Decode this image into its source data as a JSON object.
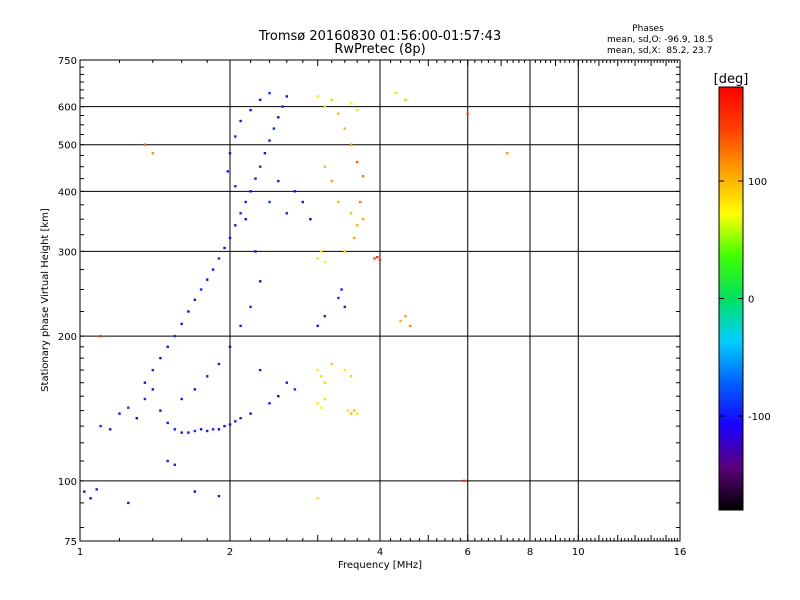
{
  "chart_data": {
    "type": "scatter",
    "title": "Tromsø 20160830 01:56:00-01:57:43",
    "subtitle": "RwPretec (8p)",
    "xlabel": "Frequency [MHz]",
    "ylabel": "Stationary phase Virtual Height [km]",
    "x_scale": "log",
    "y_scale": "log",
    "xlim": [
      1,
      16
    ],
    "ylim": [
      75,
      750
    ],
    "x_ticks": [
      1,
      2,
      4,
      6,
      8,
      10,
      16
    ],
    "x_tick_labels": [
      "1",
      "2",
      "4",
      "6",
      "8",
      "10",
      "16"
    ],
    "y_ticks": [
      75,
      100,
      200,
      300,
      400,
      500,
      600,
      750
    ],
    "y_tick_labels": [
      "75",
      "100",
      "200",
      "300",
      "400",
      "500",
      "600",
      "750"
    ],
    "grid": true,
    "legend_title": "Phases",
    "legend_lines": [
      "mean, sd,O: -96.9, 18.5",
      "mean, sd,X:  85.2, 23.7"
    ],
    "colorbar": {
      "label": "[deg]",
      "range": [
        -180,
        180
      ],
      "ticks": [
        -100,
        0,
        100
      ],
      "tick_labels": [
        "-100",
        "0",
        "100"
      ],
      "colormap": "rainbow",
      "stops": [
        "#000000",
        "#5a007a",
        "#1a00ff",
        "#0060ff",
        "#00d0ff",
        "#00e060",
        "#40ff00",
        "#ffff00",
        "#ffa000",
        "#ff4000",
        "#ff0000"
      ]
    },
    "series": [
      {
        "name": "O",
        "phase_mean": -96.9,
        "phase_sd": 18.5,
        "points": [
          [
            1.02,
            95,
            -120
          ],
          [
            1.05,
            92,
            -110
          ],
          [
            1.08,
            96,
            -100
          ],
          [
            1.1,
            130,
            -95
          ],
          [
            1.15,
            128,
            -105
          ],
          [
            1.2,
            138,
            -100
          ],
          [
            1.25,
            142,
            -90
          ],
          [
            1.3,
            135,
            -110
          ],
          [
            1.35,
            148,
            -95
          ],
          [
            1.4,
            155,
            -100
          ],
          [
            1.45,
            140,
            -105
          ],
          [
            1.5,
            132,
            -100
          ],
          [
            1.55,
            128,
            -95
          ],
          [
            1.6,
            126,
            -110
          ],
          [
            1.65,
            126,
            -100
          ],
          [
            1.7,
            127,
            -90
          ],
          [
            1.75,
            128,
            -105
          ],
          [
            1.8,
            127,
            -100
          ],
          [
            1.85,
            128,
            -95
          ],
          [
            1.9,
            128,
            -110
          ],
          [
            1.95,
            130,
            -100
          ],
          [
            2.0,
            131,
            -105
          ],
          [
            2.05,
            133,
            -95
          ],
          [
            2.1,
            135,
            -100
          ],
          [
            2.2,
            138,
            -110
          ],
          [
            1.35,
            160,
            -100
          ],
          [
            1.4,
            170,
            -95
          ],
          [
            1.45,
            180,
            -105
          ],
          [
            1.5,
            190,
            -100
          ],
          [
            1.55,
            200,
            -90
          ],
          [
            1.6,
            212,
            -100
          ],
          [
            1.65,
            225,
            -110
          ],
          [
            1.7,
            238,
            -100
          ],
          [
            1.75,
            250,
            -95
          ],
          [
            1.8,
            262,
            -105
          ],
          [
            1.85,
            275,
            -100
          ],
          [
            1.9,
            290,
            -95
          ],
          [
            1.95,
            305,
            -110
          ],
          [
            2.0,
            320,
            -100
          ],
          [
            2.05,
            340,
            -105
          ],
          [
            2.1,
            360,
            -95
          ],
          [
            2.15,
            380,
            -100
          ],
          [
            2.2,
            400,
            -110
          ],
          [
            2.25,
            425,
            -100
          ],
          [
            2.3,
            450,
            -95
          ],
          [
            2.35,
            480,
            -105
          ],
          [
            2.4,
            510,
            -100
          ],
          [
            2.45,
            540,
            -95
          ],
          [
            2.5,
            570,
            -110
          ],
          [
            2.55,
            600,
            -100
          ],
          [
            2.6,
            630,
            -105
          ],
          [
            2.4,
            640,
            -95
          ],
          [
            2.3,
            620,
            -100
          ],
          [
            2.2,
            590,
            -110
          ],
          [
            2.1,
            560,
            -100
          ],
          [
            2.05,
            520,
            -95
          ],
          [
            2.0,
            480,
            -105
          ],
          [
            1.98,
            440,
            -100
          ],
          [
            2.05,
            410,
            -95
          ],
          [
            2.15,
            350,
            -110
          ],
          [
            2.25,
            300,
            -100
          ],
          [
            2.3,
            260,
            -105
          ],
          [
            2.2,
            230,
            -95
          ],
          [
            2.1,
            210,
            -100
          ],
          [
            2.0,
            190,
            -110
          ],
          [
            1.9,
            175,
            -100
          ],
          [
            1.8,
            165,
            -95
          ],
          [
            1.7,
            155,
            -105
          ],
          [
            1.6,
            148,
            -100
          ],
          [
            2.4,
            380,
            -90
          ],
          [
            2.5,
            420,
            -100
          ],
          [
            2.6,
            360,
            -95
          ],
          [
            2.7,
            400,
            -105
          ],
          [
            2.8,
            380,
            -100
          ],
          [
            2.9,
            350,
            -110
          ],
          [
            2.6,
            160,
            -100
          ],
          [
            2.7,
            155,
            -95
          ],
          [
            2.5,
            150,
            -105
          ],
          [
            2.4,
            145,
            -100
          ],
          [
            2.3,
            170,
            -95
          ],
          [
            3.3,
            240,
            -90
          ],
          [
            3.4,
            230,
            -100
          ],
          [
            3.35,
            250,
            -95
          ],
          [
            1.5,
            110,
            -100
          ],
          [
            1.55,
            108,
            -95
          ],
          [
            1.7,
            95,
            -110
          ],
          [
            1.9,
            93,
            -100
          ],
          [
            1.25,
            90,
            -105
          ],
          [
            3.0,
            210,
            -100
          ],
          [
            3.1,
            220,
            -95
          ]
        ]
      },
      {
        "name": "X",
        "phase_mean": 85.2,
        "phase_sd": 23.7,
        "points": [
          [
            3.0,
            290,
            60
          ],
          [
            3.05,
            300,
            80
          ],
          [
            3.1,
            285,
            70
          ],
          [
            3.0,
            170,
            75
          ],
          [
            3.05,
            165,
            85
          ],
          [
            3.1,
            160,
            90
          ],
          [
            3.0,
            145,
            80
          ],
          [
            3.05,
            142,
            70
          ],
          [
            3.1,
            148,
            85
          ],
          [
            3.2,
            175,
            95
          ],
          [
            3.4,
            170,
            80
          ],
          [
            3.5,
            165,
            90
          ],
          [
            3.45,
            140,
            85
          ],
          [
            3.5,
            138,
            100
          ],
          [
            3.55,
            140,
            95
          ],
          [
            3.6,
            138,
            80
          ],
          [
            3.7,
            350,
            110
          ],
          [
            3.6,
            340,
            100
          ],
          [
            3.5,
            360,
            95
          ],
          [
            3.65,
            380,
            120
          ],
          [
            3.55,
            320,
            105
          ],
          [
            3.4,
            300,
            90
          ],
          [
            3.3,
            380,
            100
          ],
          [
            3.2,
            420,
            110
          ],
          [
            3.1,
            450,
            95
          ],
          [
            3.6,
            460,
            130
          ],
          [
            3.7,
            430,
            125
          ],
          [
            3.5,
            500,
            115
          ],
          [
            3.4,
            540,
            100
          ],
          [
            3.3,
            580,
            95
          ],
          [
            3.2,
            620,
            90
          ],
          [
            3.0,
            630,
            80
          ],
          [
            3.1,
            600,
            85
          ],
          [
            3.5,
            610,
            70
          ],
          [
            3.6,
            590,
            60
          ],
          [
            3.9,
            290,
            140
          ],
          [
            4.0,
            288,
            150
          ],
          [
            3.95,
            292,
            160
          ],
          [
            4.5,
            220,
            110
          ],
          [
            4.6,
            210,
            120
          ],
          [
            4.4,
            215,
            100
          ],
          [
            4.3,
            640,
            60
          ],
          [
            4.5,
            620,
            50
          ],
          [
            1.35,
            500,
            130
          ],
          [
            1.4,
            480,
            110
          ],
          [
            1.1,
            200,
            150
          ],
          [
            6.0,
            580,
            140
          ],
          [
            5.9,
            100,
            150
          ],
          [
            7.2,
            480,
            110
          ],
          [
            3.0,
            92,
            80
          ]
        ]
      }
    ]
  }
}
